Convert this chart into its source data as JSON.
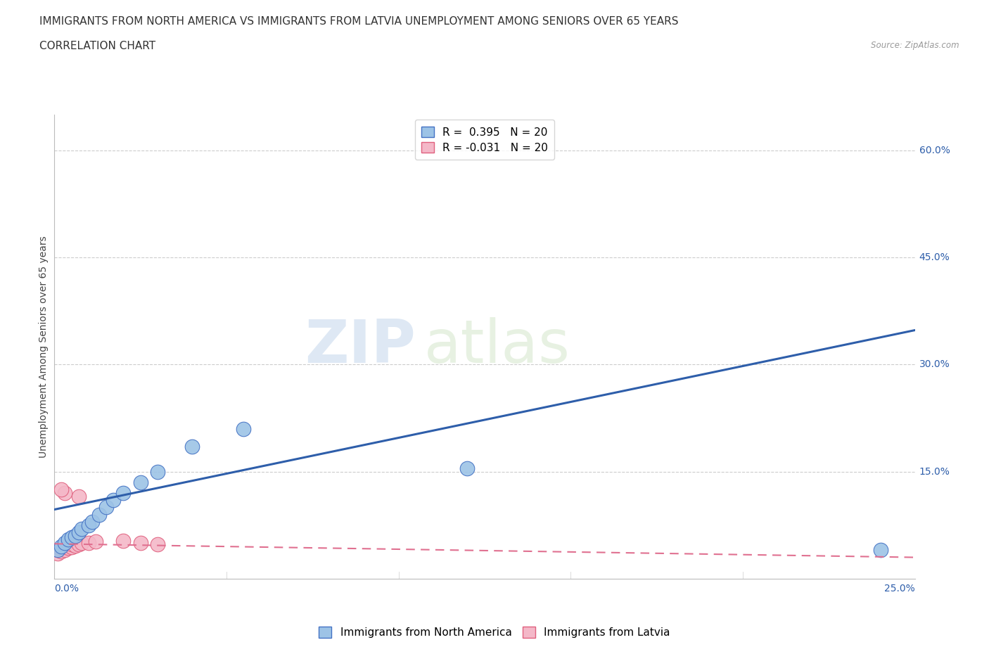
{
  "title_line1": "IMMIGRANTS FROM NORTH AMERICA VS IMMIGRANTS FROM LATVIA UNEMPLOYMENT AMONG SENIORS OVER 65 YEARS",
  "title_line2": "CORRELATION CHART",
  "source_text": "Source: ZipAtlas.com",
  "xlabel_bottom_left": "0.0%",
  "xlabel_bottom_right": "25.0%",
  "ylabel": "Unemployment Among Seniors over 65 years",
  "y_tick_labels": [
    "15.0%",
    "30.0%",
    "45.0%",
    "60.0%"
  ],
  "y_tick_values": [
    0.15,
    0.3,
    0.45,
    0.6
  ],
  "xlim": [
    0.0,
    0.25
  ],
  "ylim": [
    0.0,
    0.65
  ],
  "blue_R": 0.395,
  "blue_N": 20,
  "pink_R": -0.031,
  "pink_N": 20,
  "legend_label_blue": "Immigrants from North America",
  "legend_label_pink": "Immigrants from Latvia",
  "watermark_zip": "ZIP",
  "watermark_atlas": "atlas",
  "blue_scatter_x": [
    0.001,
    0.002,
    0.003,
    0.004,
    0.005,
    0.006,
    0.007,
    0.008,
    0.01,
    0.011,
    0.013,
    0.015,
    0.017,
    0.02,
    0.025,
    0.03,
    0.04,
    0.055,
    0.12,
    0.24
  ],
  "blue_scatter_y": [
    0.04,
    0.045,
    0.05,
    0.055,
    0.058,
    0.06,
    0.065,
    0.07,
    0.075,
    0.08,
    0.09,
    0.1,
    0.11,
    0.12,
    0.135,
    0.15,
    0.185,
    0.21,
    0.155,
    0.04
  ],
  "pink_scatter_x": [
    0.001,
    0.001,
    0.002,
    0.002,
    0.003,
    0.003,
    0.004,
    0.005,
    0.005,
    0.006,
    0.007,
    0.008,
    0.01,
    0.012,
    0.02,
    0.025,
    0.03,
    0.007,
    0.003,
    0.002
  ],
  "pink_scatter_y": [
    0.035,
    0.04,
    0.038,
    0.042,
    0.04,
    0.045,
    0.043,
    0.044,
    0.048,
    0.046,
    0.048,
    0.05,
    0.05,
    0.052,
    0.053,
    0.05,
    0.048,
    0.115,
    0.12,
    0.125
  ],
  "blue_color": "#9DC3E6",
  "blue_color_edge": "#4472C4",
  "pink_color": "#F4B8C8",
  "pink_color_edge": "#E0607E",
  "blue_line_color": "#2E5EAA",
  "pink_line_color": "#E07090",
  "title_fontsize": 11,
  "subtitle_fontsize": 11,
  "axis_label_fontsize": 10,
  "tick_label_fontsize": 10,
  "legend_fontsize": 11
}
